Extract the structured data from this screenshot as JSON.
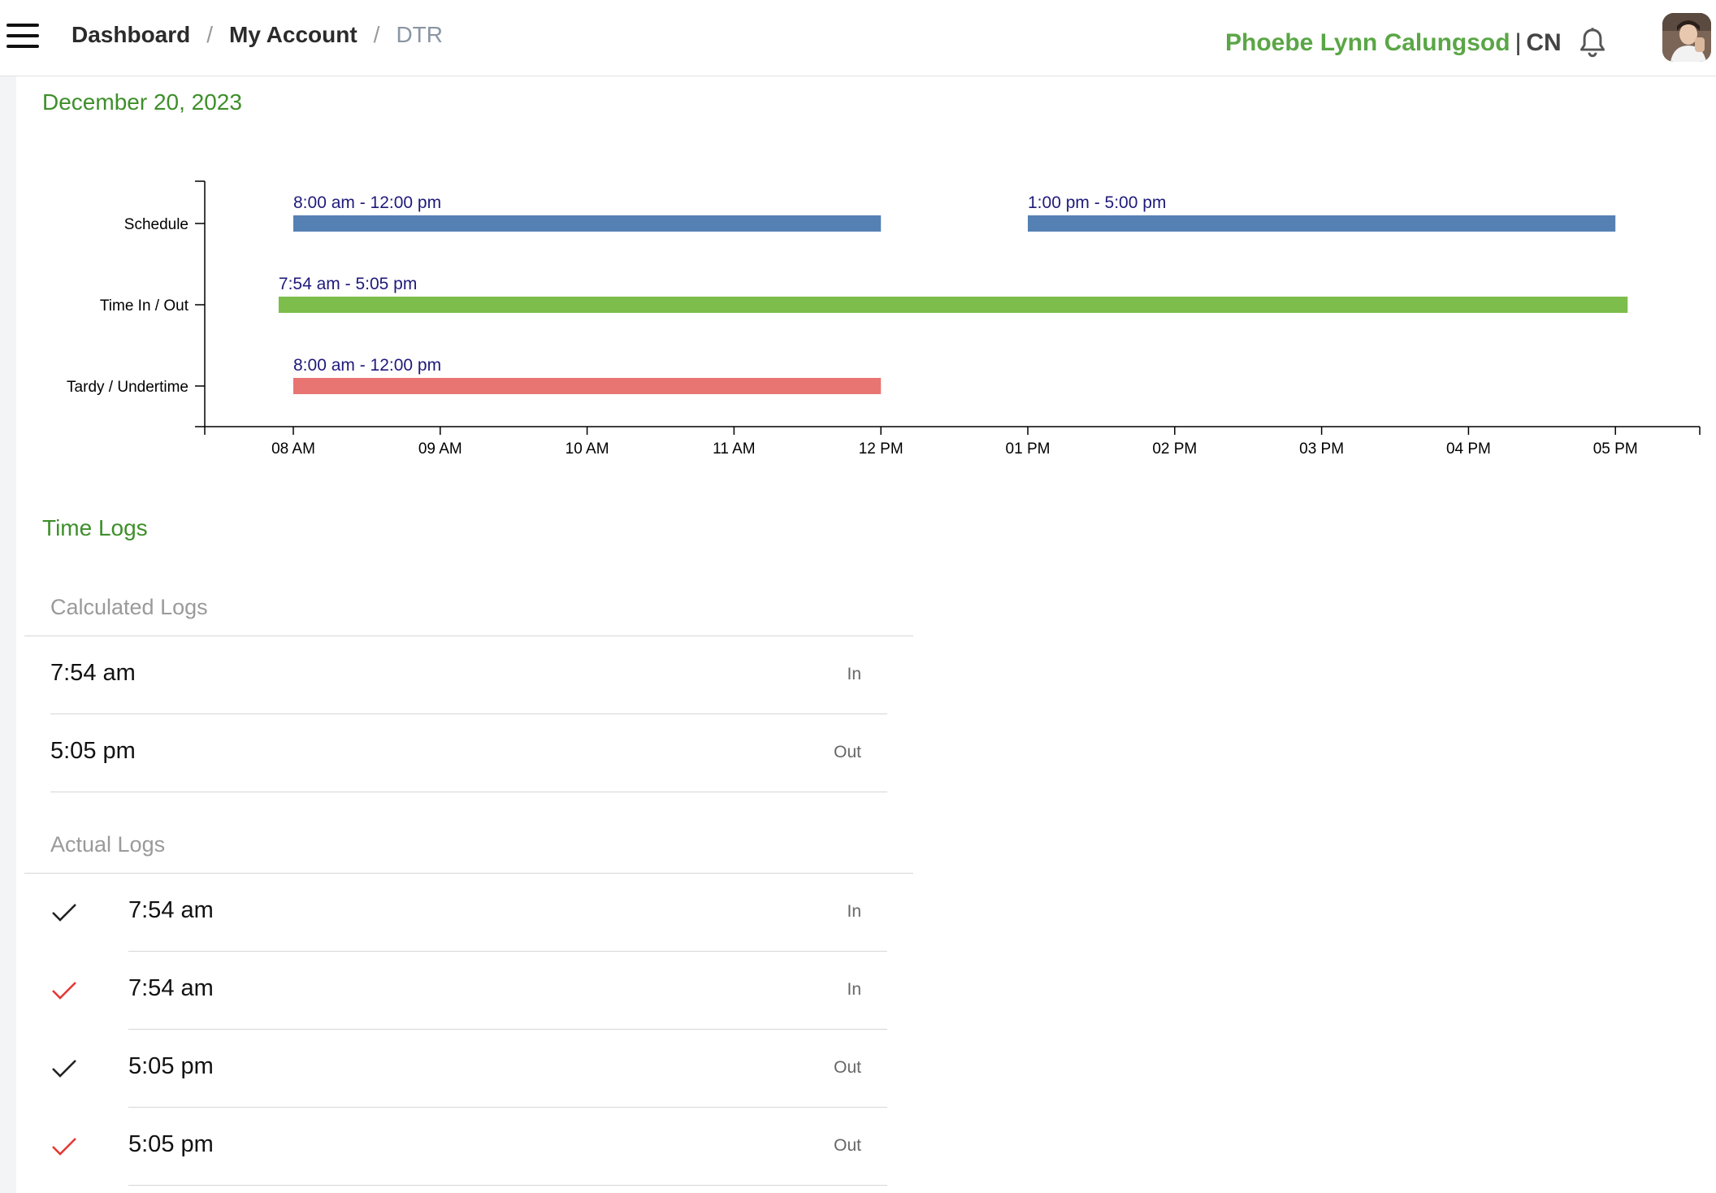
{
  "header": {
    "breadcrumb": {
      "dashboard": "Dashboard",
      "separator": "/",
      "my_account": "My Account",
      "current": "DTR"
    },
    "user_name": "Phoebe Lynn Calungsod",
    "user_pipe": "|",
    "user_code": "CN",
    "icons": {
      "menu": "hamburger-menu-icon",
      "notifications": "bell-icon",
      "avatar": "user-avatar"
    }
  },
  "date_title": "December 20, 2023",
  "chart_data": {
    "type": "timeline",
    "x_ticks": [
      "08 AM",
      "09 AM",
      "10 AM",
      "11 AM",
      "12 PM",
      "01 PM",
      "02 PM",
      "03 PM",
      "04 PM",
      "05 PM"
    ],
    "xlim": [
      "07:24",
      "17:40"
    ],
    "rows": [
      {
        "label": "Schedule",
        "color": "#5580b4",
        "segments": [
          {
            "start": "08:00",
            "end": "12:00",
            "label": "8:00 am - 12:00 pm"
          },
          {
            "start": "13:00",
            "end": "17:00",
            "label": "1:00 pm - 5:00 pm"
          }
        ]
      },
      {
        "label": "Time In / Out",
        "color": "#7dbd4c",
        "segments": [
          {
            "start": "07:54",
            "end": "17:05",
            "label": "7:54 am - 5:05 pm"
          }
        ]
      },
      {
        "label": "Tardy / Undertime",
        "color": "#e87571",
        "segments": [
          {
            "start": "08:00",
            "end": "12:00",
            "label": "8:00 am - 12:00 pm"
          }
        ]
      }
    ],
    "label_color": "#1f1a7a"
  },
  "time_logs": {
    "title": "Time Logs",
    "calculated": {
      "title": "Calculated Logs",
      "rows": [
        {
          "time": "7:54 am",
          "direction": "In"
        },
        {
          "time": "5:05 pm",
          "direction": "Out"
        }
      ]
    },
    "actual": {
      "title": "Actual Logs",
      "rows": [
        {
          "time": "7:54 am",
          "direction": "In",
          "check_color": "#222222"
        },
        {
          "time": "7:54 am",
          "direction": "In",
          "check_color": "#e53935"
        },
        {
          "time": "5:05 pm",
          "direction": "Out",
          "check_color": "#222222"
        },
        {
          "time": "5:05 pm",
          "direction": "Out",
          "check_color": "#e53935"
        }
      ]
    }
  }
}
